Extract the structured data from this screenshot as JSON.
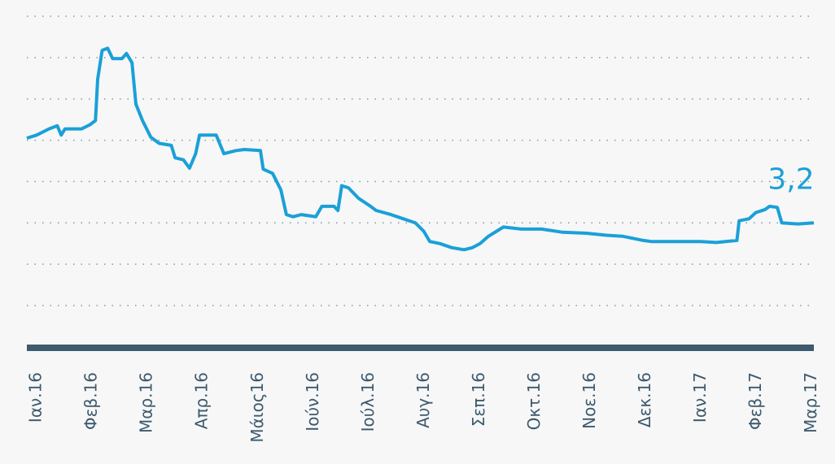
{
  "chart_data": {
    "type": "line",
    "annotation": {
      "text": "3,2",
      "value": 3.2
    },
    "color": "#1aa0d8",
    "grid": true,
    "xlim": [
      -0.18,
      14.04
    ],
    "ylim": [
      2.4,
      5.2
    ],
    "yticks": [
      2.4,
      2.8,
      3.2,
      3.6,
      4.0,
      4.4,
      4.8,
      5.2
    ],
    "xticks": [
      {
        "value": 0,
        "label": "Ιαν.16"
      },
      {
        "value": 1,
        "label": "Φεβ.16"
      },
      {
        "value": 2,
        "label": "Μαρ.16"
      },
      {
        "value": 3,
        "label": "Απρ.16"
      },
      {
        "value": 4,
        "label": "Μάιος16"
      },
      {
        "value": 5,
        "label": "Ιούν.16"
      },
      {
        "value": 6,
        "label": "Ιούλ.16"
      },
      {
        "value": 7,
        "label": "Αυγ.16"
      },
      {
        "value": 8,
        "label": "Σεπ.16"
      },
      {
        "value": 9,
        "label": "Οκτ.16"
      },
      {
        "value": 10,
        "label": "Νοε.16"
      },
      {
        "value": 11,
        "label": "Δεκ.16"
      },
      {
        "value": 12,
        "label": "Ιαν.17"
      },
      {
        "value": 13,
        "label": "Φεβ.17"
      },
      {
        "value": 14,
        "label": "Μαρ.17"
      }
    ],
    "x": [
      -0.18,
      0,
      0.22,
      0.37,
      0.44,
      0.51,
      0.81,
      0.96,
      1.06,
      1.1,
      1.18,
      1.28,
      1.37,
      1.54,
      1.62,
      1.72,
      1.79,
      1.91,
      2.06,
      2.21,
      2.43,
      2.5,
      2.65,
      2.76,
      2.87,
      2.94,
      3.24,
      3.38,
      3.6,
      3.75,
      4.04,
      4.09,
      4.26,
      4.41,
      4.51,
      4.63,
      4.78,
      5.04,
      5.15,
      5.37,
      5.44,
      5.51,
      5.63,
      5.81,
      6.03,
      6.13,
      6.4,
      6.62,
      6.84,
      6.99,
      7.1,
      7.28,
      7.5,
      7.72,
      7.87,
      8.01,
      8.16,
      8.31,
      8.43,
      8.75,
      9.12,
      9.49,
      9.93,
      10.29,
      10.59,
      10.96,
      11.1,
      11.54,
      11.99,
      12.28,
      12.65,
      12.69,
      12.87,
      12.99,
      13.16,
      13.24,
      13.38,
      13.46,
      13.75,
      14.04
    ],
    "values": [
      4.02,
      4.05,
      4.11,
      4.14,
      4.05,
      4.11,
      4.11,
      4.15,
      4.19,
      4.59,
      4.87,
      4.89,
      4.79,
      4.79,
      4.84,
      4.75,
      4.35,
      4.19,
      4.03,
      3.97,
      3.95,
      3.83,
      3.81,
      3.73,
      3.87,
      4.05,
      4.05,
      3.87,
      3.9,
      3.91,
      3.9,
      3.72,
      3.68,
      3.52,
      3.28,
      3.26,
      3.28,
      3.26,
      3.36,
      3.36,
      3.32,
      3.56,
      3.54,
      3.44,
      3.36,
      3.32,
      3.28,
      3.24,
      3.2,
      3.12,
      3.02,
      3.0,
      2.96,
      2.94,
      2.96,
      3.0,
      3.07,
      3.12,
      3.16,
      3.14,
      3.14,
      3.11,
      3.1,
      3.08,
      3.07,
      3.03,
      3.02,
      3.02,
      3.02,
      3.01,
      3.03,
      3.22,
      3.24,
      3.3,
      3.33,
      3.36,
      3.35,
      3.2,
      3.19,
      3.2
    ]
  }
}
